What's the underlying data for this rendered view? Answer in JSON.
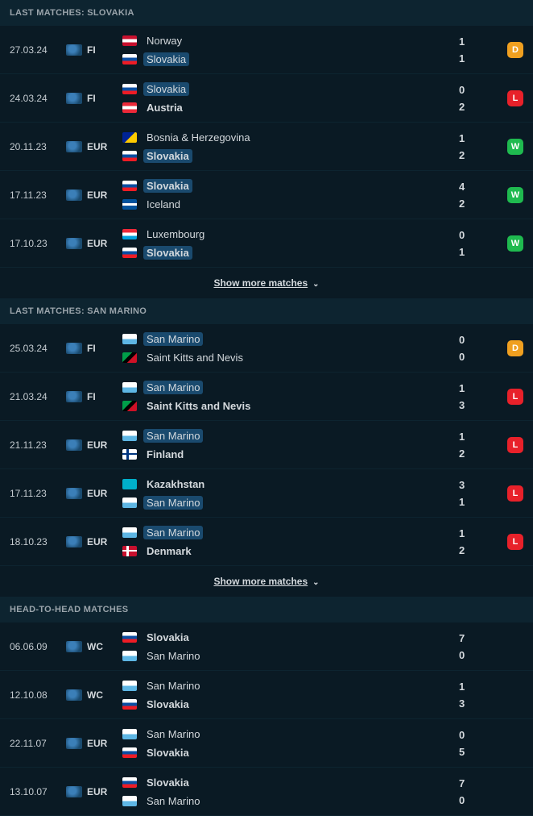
{
  "show_more_label": "Show more matches",
  "sections": [
    {
      "title": "LAST MATCHES: SLOVAKIA",
      "show_more": true,
      "matches": [
        {
          "date": "27.03.24",
          "comp_flag": "flag-world",
          "comp": "FI",
          "home_flag": "flag-nor",
          "home": "Norway",
          "home_hl": false,
          "home_bold": false,
          "away_flag": "flag-svk",
          "away": "Slovakia",
          "away_hl": true,
          "away_bold": false,
          "hs": "1",
          "as": "1",
          "result": "D"
        },
        {
          "date": "24.03.24",
          "comp_flag": "flag-world",
          "comp": "FI",
          "home_flag": "flag-svk",
          "home": "Slovakia",
          "home_hl": true,
          "home_bold": false,
          "away_flag": "flag-aut",
          "away": "Austria",
          "away_hl": false,
          "away_bold": true,
          "hs": "0",
          "as": "2",
          "result": "L"
        },
        {
          "date": "20.11.23",
          "comp_flag": "flag-world",
          "comp": "EUR",
          "home_flag": "flag-bih",
          "home": "Bosnia & Herzegovina",
          "home_hl": false,
          "home_bold": false,
          "away_flag": "flag-svk",
          "away": "Slovakia",
          "away_hl": true,
          "away_bold": true,
          "hs": "1",
          "as": "2",
          "result": "W"
        },
        {
          "date": "17.11.23",
          "comp_flag": "flag-world",
          "comp": "EUR",
          "home_flag": "flag-svk",
          "home": "Slovakia",
          "home_hl": true,
          "home_bold": true,
          "away_flag": "flag-isl",
          "away": "Iceland",
          "away_hl": false,
          "away_bold": false,
          "hs": "4",
          "as": "2",
          "result": "W"
        },
        {
          "date": "17.10.23",
          "comp_flag": "flag-world",
          "comp": "EUR",
          "home_flag": "flag-lux",
          "home": "Luxembourg",
          "home_hl": false,
          "home_bold": false,
          "away_flag": "flag-svk",
          "away": "Slovakia",
          "away_hl": true,
          "away_bold": true,
          "hs": "0",
          "as": "1",
          "result": "W"
        }
      ]
    },
    {
      "title": "LAST MATCHES: SAN MARINO",
      "show_more": true,
      "matches": [
        {
          "date": "25.03.24",
          "comp_flag": "flag-world",
          "comp": "FI",
          "home_flag": "flag-smr",
          "home": "San Marino",
          "home_hl": true,
          "home_bold": false,
          "away_flag": "flag-skn",
          "away": "Saint Kitts and Nevis",
          "away_hl": false,
          "away_bold": false,
          "hs": "0",
          "as": "0",
          "result": "D"
        },
        {
          "date": "21.03.24",
          "comp_flag": "flag-world",
          "comp": "FI",
          "home_flag": "flag-smr",
          "home": "San Marino",
          "home_hl": true,
          "home_bold": false,
          "away_flag": "flag-skn",
          "away": "Saint Kitts and Nevis",
          "away_hl": false,
          "away_bold": true,
          "hs": "1",
          "as": "3",
          "result": "L"
        },
        {
          "date": "21.11.23",
          "comp_flag": "flag-world",
          "comp": "EUR",
          "home_flag": "flag-smr",
          "home": "San Marino",
          "home_hl": true,
          "home_bold": false,
          "away_flag": "flag-fin",
          "away": "Finland",
          "away_hl": false,
          "away_bold": true,
          "hs": "1",
          "as": "2",
          "result": "L"
        },
        {
          "date": "17.11.23",
          "comp_flag": "flag-world",
          "comp": "EUR",
          "home_flag": "flag-kaz",
          "home": "Kazakhstan",
          "home_hl": false,
          "home_bold": true,
          "away_flag": "flag-smr",
          "away": "San Marino",
          "away_hl": true,
          "away_bold": false,
          "hs": "3",
          "as": "1",
          "result": "L"
        },
        {
          "date": "18.10.23",
          "comp_flag": "flag-world",
          "comp": "EUR",
          "home_flag": "flag-smr",
          "home": "San Marino",
          "home_hl": true,
          "home_bold": false,
          "away_flag": "flag-den",
          "away": "Denmark",
          "away_hl": false,
          "away_bold": true,
          "hs": "1",
          "as": "2",
          "result": "L"
        }
      ]
    },
    {
      "title": "HEAD-TO-HEAD MATCHES",
      "show_more": false,
      "matches": [
        {
          "date": "06.06.09",
          "comp_flag": "flag-world",
          "comp": "WC",
          "home_flag": "flag-svk",
          "home": "Slovakia",
          "home_hl": false,
          "home_bold": true,
          "away_flag": "flag-smr",
          "away": "San Marino",
          "away_hl": false,
          "away_bold": false,
          "hs": "7",
          "as": "0",
          "result": ""
        },
        {
          "date": "12.10.08",
          "comp_flag": "flag-world",
          "comp": "WC",
          "home_flag": "flag-smr",
          "home": "San Marino",
          "home_hl": false,
          "home_bold": false,
          "away_flag": "flag-svk",
          "away": "Slovakia",
          "away_hl": false,
          "away_bold": true,
          "hs": "1",
          "as": "3",
          "result": ""
        },
        {
          "date": "22.11.07",
          "comp_flag": "flag-world",
          "comp": "EUR",
          "home_flag": "flag-smr",
          "home": "San Marino",
          "home_hl": false,
          "home_bold": false,
          "away_flag": "flag-svk",
          "away": "Slovakia",
          "away_hl": false,
          "away_bold": true,
          "hs": "0",
          "as": "5",
          "result": ""
        },
        {
          "date": "13.10.07",
          "comp_flag": "flag-world",
          "comp": "EUR",
          "home_flag": "flag-svk",
          "home": "Slovakia",
          "home_hl": false,
          "home_bold": true,
          "away_flag": "flag-smr",
          "away": "San Marino",
          "away_hl": false,
          "away_bold": false,
          "hs": "7",
          "as": "0",
          "result": ""
        }
      ]
    }
  ]
}
